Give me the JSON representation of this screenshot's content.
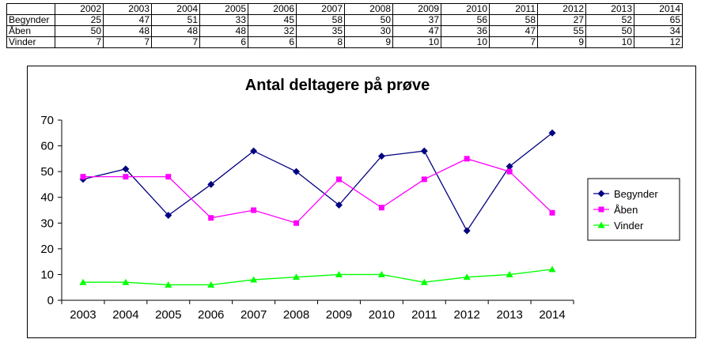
{
  "table": {
    "years": [
      "2002",
      "2003",
      "2004",
      "2005",
      "2006",
      "2007",
      "2008",
      "2009",
      "2010",
      "2011",
      "2012",
      "2013",
      "2014"
    ],
    "rows": [
      {
        "label": "Begynder",
        "values": [
          "25",
          "47",
          "51",
          "33",
          "45",
          "58",
          "50",
          "37",
          "56",
          "58",
          "27",
          "52",
          "65"
        ]
      },
      {
        "label": "Åben",
        "values": [
          "50",
          "48",
          "48",
          "48",
          "32",
          "35",
          "30",
          "47",
          "36",
          "47",
          "55",
          "50",
          "34"
        ]
      },
      {
        "label": "Vinder",
        "values": [
          "7",
          "7",
          "7",
          "6",
          "6",
          "8",
          "9",
          "10",
          "10",
          "7",
          "9",
          "10",
          "12"
        ]
      }
    ]
  },
  "chart_data": {
    "type": "line",
    "title": "Antal deltagere på prøve",
    "xlabel": "",
    "ylabel": "",
    "x": [
      "2003",
      "2004",
      "2005",
      "2006",
      "2007",
      "2008",
      "2009",
      "2010",
      "2011",
      "2012",
      "2013",
      "2014"
    ],
    "ylim": [
      0,
      70
    ],
    "yticks": [
      0,
      10,
      20,
      30,
      40,
      50,
      60,
      70
    ],
    "grid": false,
    "legend_position": "right",
    "series": [
      {
        "name": "Begynder",
        "color": "#000080",
        "marker": "diamond",
        "values": [
          47,
          51,
          33,
          45,
          58,
          50,
          37,
          56,
          58,
          27,
          52,
          65
        ]
      },
      {
        "name": "Åben",
        "color": "#ff00ff",
        "marker": "square",
        "values": [
          48,
          48,
          48,
          32,
          35,
          30,
          47,
          36,
          47,
          55,
          50,
          34
        ]
      },
      {
        "name": "Vinder",
        "color": "#00ff00",
        "marker": "triangle",
        "values": [
          7,
          7,
          6,
          6,
          8,
          9,
          10,
          10,
          7,
          9,
          10,
          12
        ]
      }
    ]
  }
}
